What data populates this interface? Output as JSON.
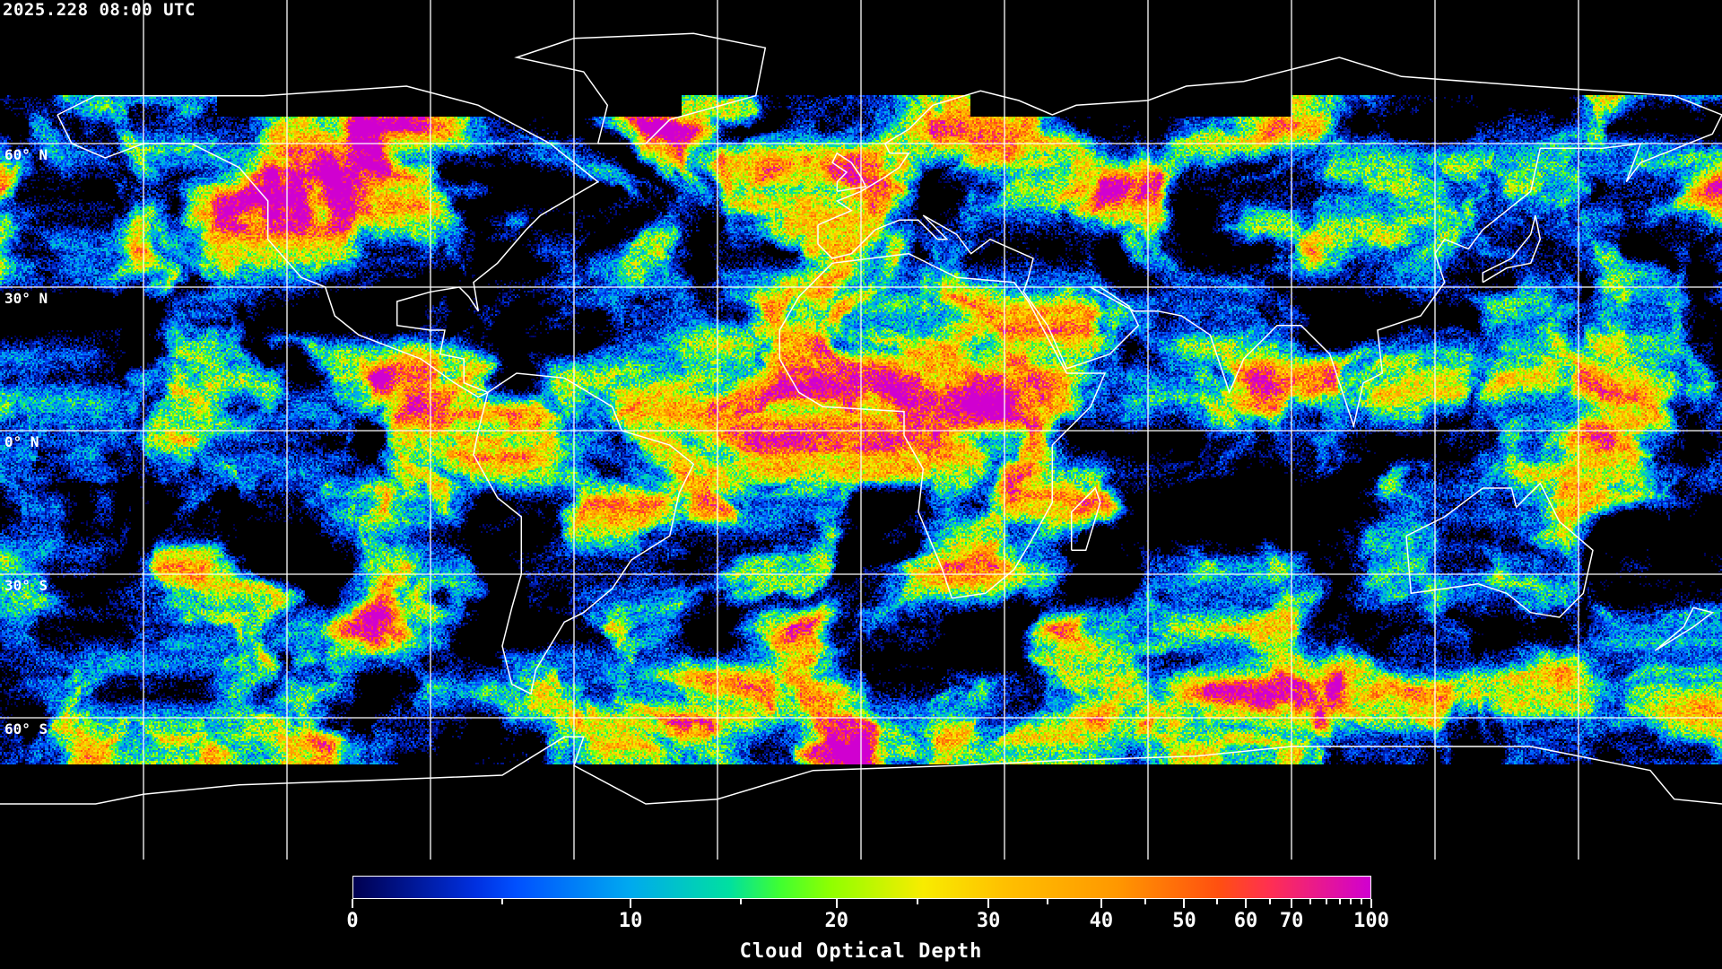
{
  "timestamp": "2025.228 08:00 UTC",
  "map": {
    "projection": "equirectangular",
    "lat_labels": [
      "60° N",
      "30° N",
      "0° N",
      "30° S",
      "60° S"
    ],
    "grid_lat_values": [
      60,
      30,
      0,
      -30,
      -60
    ],
    "grid_lon_spacing_deg": 30,
    "coastline_color": "#ffffff",
    "grid_color": "#ffffff",
    "no_data_color": "#000000"
  },
  "colorbar": {
    "title": "Cloud Optical Depth",
    "range": [
      0,
      100
    ],
    "major_ticks": [
      {
        "value": 0,
        "label": "0"
      },
      {
        "value": 10,
        "label": "10"
      },
      {
        "value": 20,
        "label": "20"
      },
      {
        "value": 30,
        "label": "30"
      },
      {
        "value": 40,
        "label": "40"
      },
      {
        "value": 50,
        "label": "50"
      },
      {
        "value": 60,
        "label": "60"
      },
      {
        "value": 70,
        "label": "70"
      },
      {
        "value": 100,
        "label": "100"
      }
    ],
    "minor_ticks": [
      5,
      15,
      25,
      35,
      45,
      55,
      65,
      75,
      80,
      85,
      90,
      95
    ],
    "colors": [
      "#000050",
      "#0030e0",
      "#0050ff",
      "#00a8f0",
      "#00e0a0",
      "#40ff30",
      "#90ff00",
      "#f8ec00",
      "#ffc000",
      "#ff9800",
      "#ff5010",
      "#ff3050",
      "#d000d0"
    ]
  }
}
